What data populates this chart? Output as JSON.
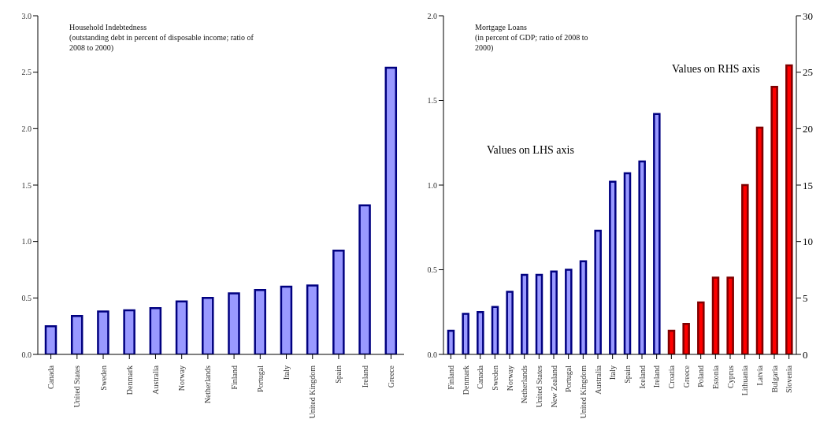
{
  "chart_data": [
    {
      "type": "bar",
      "title": "Household Indebtedness",
      "subtitle": "(outstanding debt in percent of disposable income; ratio of 2008 to 2000)",
      "categories": [
        "Canada",
        "United States",
        "Sweden",
        "Denmark",
        "Australia",
        "Norway",
        "Netherlands",
        "Finland",
        "Portugal",
        "Italy",
        "United Kingdom",
        "Spain",
        "Ireland",
        "Greece"
      ],
      "series": [
        {
          "color": "#9999ff",
          "values": [
            0.25,
            0.34,
            0.38,
            0.39,
            0.41,
            0.47,
            0.5,
            0.54,
            0.57,
            0.6,
            0.61,
            0.92,
            1.32,
            2.54
          ]
        }
      ],
      "ylim": [
        0,
        3
      ],
      "yticks": [
        {
          "value": 0,
          "label": "0.0"
        },
        {
          "value": 0.5,
          "label": "0.5"
        },
        {
          "value": 1,
          "label": "1.0"
        },
        {
          "value": 1.5,
          "label": "1.5"
        },
        {
          "value": 2,
          "label": "2.0"
        },
        {
          "value": 2.5,
          "label": "2.5"
        },
        {
          "value": 3,
          "label": "3.0"
        }
      ],
      "grid": false,
      "legend": false
    },
    {
      "type": "bar",
      "title": "Mortgage Loans",
      "subtitle": "(in percent of GDP; ratio of 2008 to 2000)",
      "categories": [
        "Finland",
        "Denmark",
        "Canada",
        "Sweden",
        "Norway",
        "Netherlands",
        "United States",
        "New Zealand",
        "Portugal",
        "United Kingdom",
        "Australia",
        "Italy",
        "Spain",
        "Iceland",
        "Ireland",
        "Croatia",
        "Greece",
        "Poland",
        "Estonia",
        "Cyprus",
        "Lithuania",
        "Latvia",
        "Bulgaria",
        "Slovenia"
      ],
      "series": [
        {
          "color": "#9999ff",
          "values": [
            0.14,
            0.24,
            0.25,
            0.28,
            0.37,
            0.47,
            0.47,
            0.49,
            0.5,
            0.55,
            0.73,
            1.02,
            1.07,
            1.14,
            1.42,
            null,
            null,
            null,
            null,
            null,
            null,
            null,
            null,
            null
          ]
        },
        {
          "color": "#ff0000",
          "axis": "y2",
          "values": [
            null,
            null,
            null,
            null,
            null,
            null,
            null,
            null,
            null,
            null,
            null,
            null,
            null,
            null,
            null,
            2.1,
            2.7,
            4.6,
            6.8,
            6.8,
            15.0,
            20.1,
            23.7,
            25.6
          ]
        }
      ],
      "ylim": [
        0,
        2
      ],
      "yticks": [
        {
          "value": 0,
          "label": "0.0"
        },
        {
          "value": 0.5,
          "label": "0.5"
        },
        {
          "value": 1,
          "label": "1.0"
        },
        {
          "value": 1.5,
          "label": "1.5"
        },
        {
          "value": 2,
          "label": "2.0"
        }
      ],
      "y2lim": [
        0,
        30
      ],
      "y2ticks": [
        0,
        5,
        10,
        15,
        20,
        25,
        30
      ],
      "grid": false,
      "legend": false,
      "annotations": [
        "Values on LHS axis",
        "Values on RHS axis"
      ]
    }
  ]
}
